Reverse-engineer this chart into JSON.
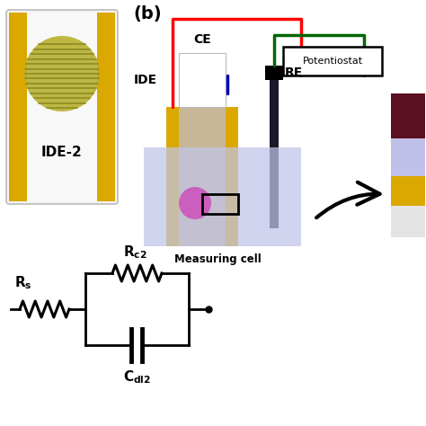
{
  "bg_color": "#ffffff",
  "ide2_label": "IDE-2",
  "label_b": "(b)",
  "ide_label": "IDE",
  "ce_label": "CE",
  "re_label": "RE",
  "potentiostat_label": "Potentiostat",
  "measuring_cell_label": "Measuring cell",
  "colors": {
    "yellow": "#DAA800",
    "light_gray": "#EFEFEF",
    "gold_circle": "#B8B030",
    "red": "#CC0000",
    "blue": "#0000BB",
    "green": "#006600",
    "black": "#000000",
    "cell_blue": "#C0C4E8",
    "purple_dot": "#CC55BB",
    "dark_red": "#5A1020",
    "lavender": "#C0C0E8",
    "light_silver": "#E0E0E0",
    "tan": "#B89860",
    "dark_brown": "#4A3020"
  }
}
